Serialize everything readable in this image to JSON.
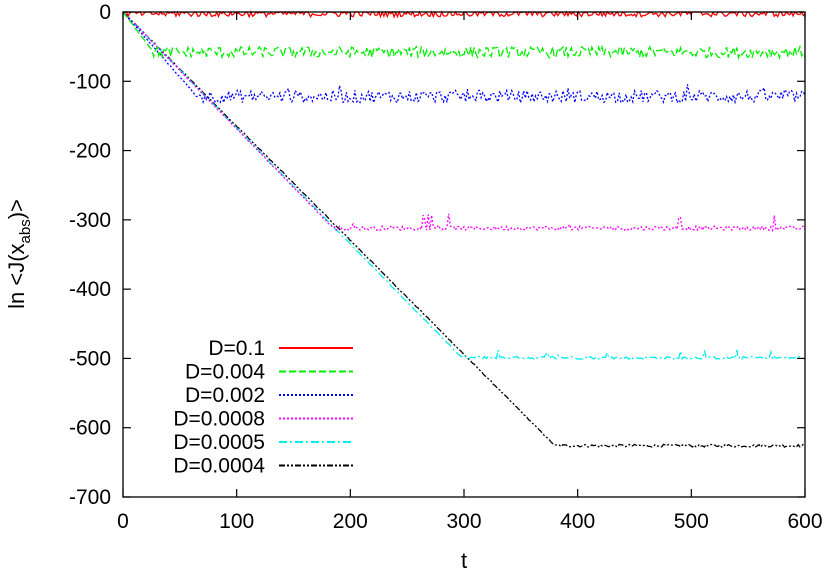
{
  "chart_data": {
    "type": "line",
    "title": "",
    "xlabel": "t",
    "ylabel": "ln <J(x_abs)>",
    "ylabel_parts": {
      "prefix": "ln <J(x",
      "subscript": "abs",
      "suffix": ")>"
    },
    "xlim": [
      0,
      600
    ],
    "ylim": [
      -700,
      0
    ],
    "x_ticks": [
      0,
      100,
      200,
      300,
      400,
      500,
      600
    ],
    "y_ticks": [
      0,
      -100,
      -200,
      -300,
      -400,
      -500,
      -600,
      -700
    ],
    "grid": false,
    "legend_position": "bottom-left",
    "series": [
      {
        "name": "D=0.1",
        "color": "#ff0000",
        "dash": "solid",
        "plateau": -2,
        "knee_t": 0,
        "noise": 5,
        "spikes": 0
      },
      {
        "name": "D=0.004",
        "color": "#00ee00",
        "dash": "dashed",
        "plateau": -58,
        "knee_t": 27,
        "noise": 8,
        "spikes": 0
      },
      {
        "name": "D=0.002",
        "color": "#0000ff",
        "dash": "dotted",
        "plateau": -122,
        "knee_t": 65,
        "noise": 9,
        "spikes": 12
      },
      {
        "name": "D=0.0008",
        "color": "#ff00ff",
        "dash": "dotted",
        "plateau": -312,
        "knee_t": 185,
        "noise": 3,
        "spikes": 22
      },
      {
        "name": "D=0.0005",
        "color": "#00eeee",
        "dash": "dash-dot",
        "plateau": -499,
        "knee_t": 298,
        "noise": 2,
        "spikes": 14
      },
      {
        "name": "D=0.0004",
        "color": "#000000",
        "dash": "dash-dot-dot",
        "plateau": -626,
        "knee_t": 380,
        "noise": 2,
        "spikes": 0
      }
    ]
  }
}
